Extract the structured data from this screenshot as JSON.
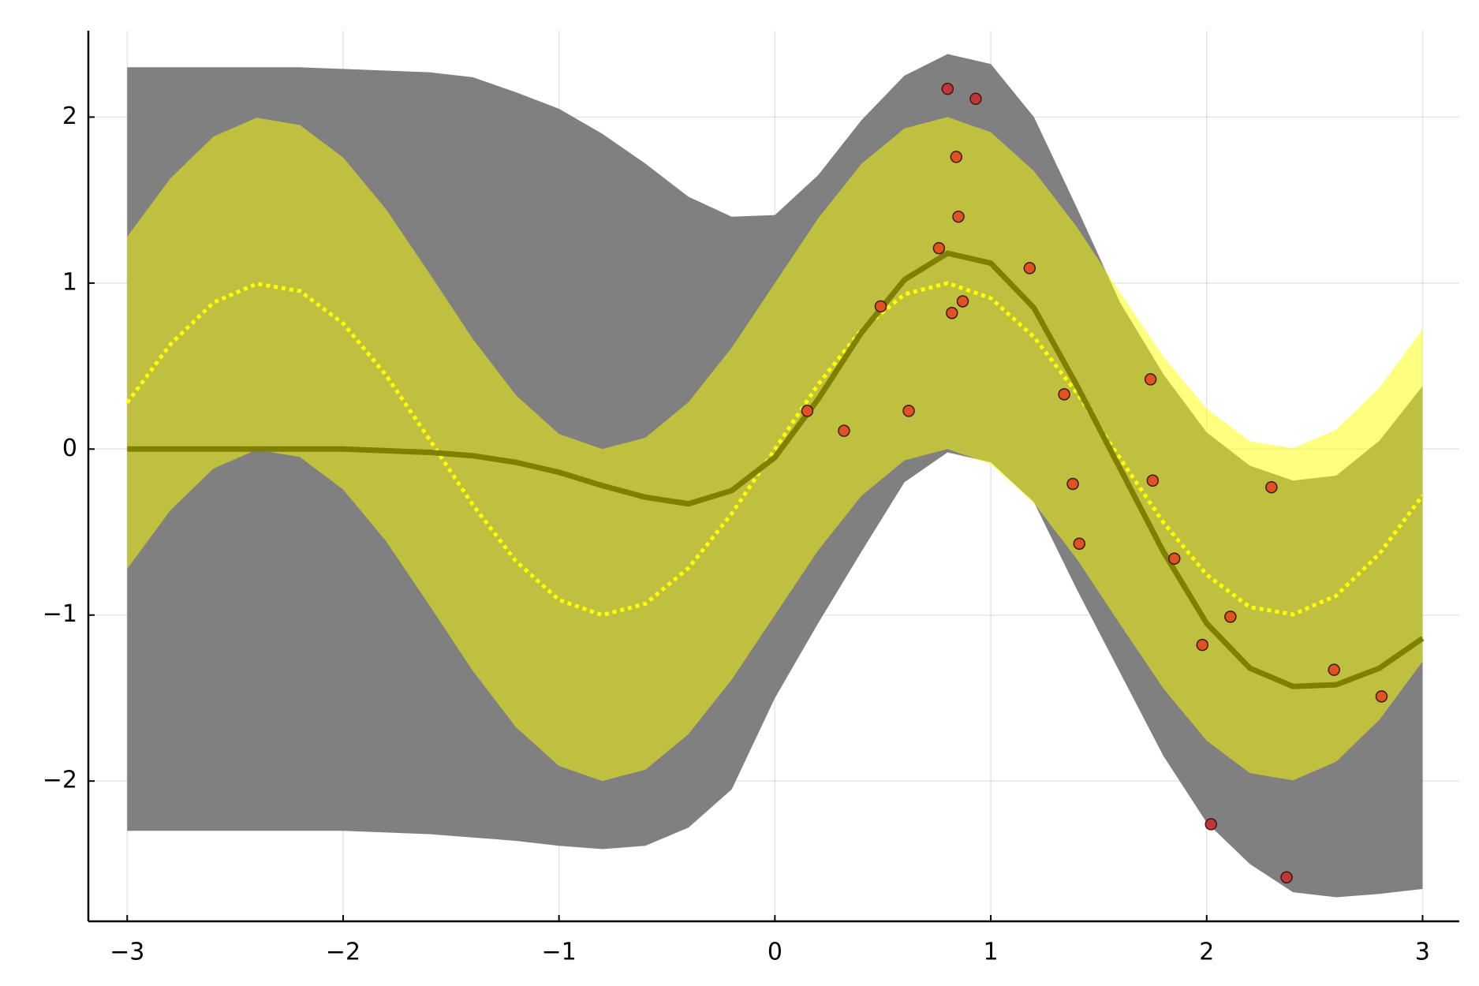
{
  "chart_data": {
    "type": "line",
    "grid": true,
    "xlim": [
      -3.18,
      3.17
    ],
    "ylim": [
      -2.845,
      2.52
    ],
    "xticks": [
      {
        "value": -3,
        "label": "−3"
      },
      {
        "value": -2,
        "label": "−2"
      },
      {
        "value": -1,
        "label": "−1"
      },
      0,
      1,
      2,
      3
    ],
    "yticks": [
      {
        "value": -2,
        "label": "−2"
      },
      {
        "value": -1,
        "label": "−1"
      },
      0,
      1,
      2
    ],
    "x": [
      -3.0,
      -2.8,
      -2.6,
      -2.4,
      -2.2,
      -2.0,
      -1.8,
      -1.6,
      -1.4,
      -1.2,
      -1.0,
      -0.8,
      -0.6,
      -0.4,
      -0.2,
      0,
      0.2,
      0.4,
      0.6,
      0.8,
      1.0,
      1.2,
      1.4,
      1.6,
      1.8,
      2.0,
      2.2,
      2.4,
      2.6,
      2.8,
      3.0
    ],
    "bands": [
      {
        "color": "#808080",
        "alpha": 1,
        "upper": [
          2.3,
          2.3,
          2.3,
          2.3,
          2.3,
          2.29,
          2.28,
          2.27,
          2.24,
          2.15,
          2.05,
          1.9,
          1.72,
          1.52,
          1.4,
          1.41,
          1.65,
          1.98,
          2.25,
          2.38,
          2.32,
          2.0,
          1.45,
          0.88,
          0.45,
          0.1,
          -0.1,
          -0.19,
          -0.16,
          0.05,
          0.38
        ],
        "lower": [
          -2.3,
          -2.3,
          -2.3,
          -2.3,
          -2.3,
          -2.3,
          -2.31,
          -2.32,
          -2.34,
          -2.36,
          -2.39,
          -2.41,
          -2.39,
          -2.28,
          -2.05,
          -1.5,
          -1.05,
          -0.62,
          -0.2,
          -0.02,
          -0.08,
          -0.32,
          -0.85,
          -1.35,
          -1.85,
          -2.25,
          -2.5,
          -2.67,
          -2.7,
          -2.68,
          -2.65
        ]
      },
      {
        "color": "#ffff00",
        "alpha": 0.5,
        "upper": [
          1.279,
          1.631,
          1.883,
          1.996,
          1.952,
          1.757,
          1.443,
          1.058,
          0.665,
          0.325,
          0.091,
          0.0,
          0.068,
          0.283,
          0.611,
          1.0,
          1.389,
          1.717,
          1.932,
          2.0,
          1.909,
          1.675,
          1.335,
          0.942,
          0.557,
          0.243,
          0.048,
          0.004,
          0.117,
          0.369,
          0.721
        ],
        "lower": [
          -0.721,
          -0.369,
          -0.117,
          -0.004,
          -0.048,
          -0.243,
          -0.557,
          -0.942,
          -1.335,
          -1.675,
          -1.909,
          -2.0,
          -1.932,
          -1.717,
          -1.389,
          -1.0,
          -0.611,
          -0.283,
          -0.068,
          0.0,
          -0.091,
          -0.325,
          -0.665,
          -1.058,
          -1.443,
          -1.757,
          -1.952,
          -1.996,
          -1.883,
          -1.631,
          -1.279
        ]
      }
    ],
    "series": [
      {
        "color": "#ffff00",
        "style": "dotted",
        "values": [
          0.279,
          0.631,
          0.883,
          0.996,
          0.952,
          0.757,
          0.443,
          0.058,
          -0.335,
          -0.675,
          -0.909,
          -1.0,
          -0.932,
          -0.717,
          -0.389,
          0,
          0.389,
          0.717,
          0.932,
          1.0,
          0.909,
          0.675,
          0.335,
          -0.058,
          -0.443,
          -0.757,
          -0.952,
          -0.996,
          -0.883,
          -0.631,
          -0.279
        ]
      },
      {
        "color": "#808000",
        "style": "solid",
        "values": [
          0,
          0,
          0,
          0,
          0,
          0,
          -0.01,
          -0.02,
          -0.04,
          -0.08,
          -0.14,
          -0.22,
          -0.29,
          -0.33,
          -0.25,
          -0.05,
          0.3,
          0.7,
          1.02,
          1.18,
          1.12,
          0.85,
          0.38,
          -0.12,
          -0.62,
          -1.05,
          -1.32,
          -1.43,
          -1.42,
          -1.32,
          -1.14
        ]
      }
    ],
    "points": [
      {
        "color": "#e0521f",
        "x": [
          0.15,
          0.32,
          0.49,
          0.62,
          0.76,
          0.82,
          0.84,
          0.85,
          0.87,
          1.18,
          1.34,
          1.38,
          1.41,
          1.74,
          1.75,
          1.85,
          1.98,
          2.11,
          2.3,
          2.59,
          2.81
        ],
        "y": [
          0.23,
          0.11,
          0.86,
          0.23,
          1.21,
          0.82,
          1.76,
          1.4,
          0.89,
          1.09,
          0.33,
          -0.21,
          -0.57,
          0.42,
          -0.19,
          -0.66,
          -1.18,
          -1.01,
          -0.23,
          -1.33,
          -1.49
        ]
      },
      {
        "color": "#c0373a",
        "x": [
          0.8,
          0.93,
          2.02,
          2.37
        ],
        "y": [
          2.17,
          2.11,
          -2.26,
          -2.58
        ]
      }
    ]
  }
}
